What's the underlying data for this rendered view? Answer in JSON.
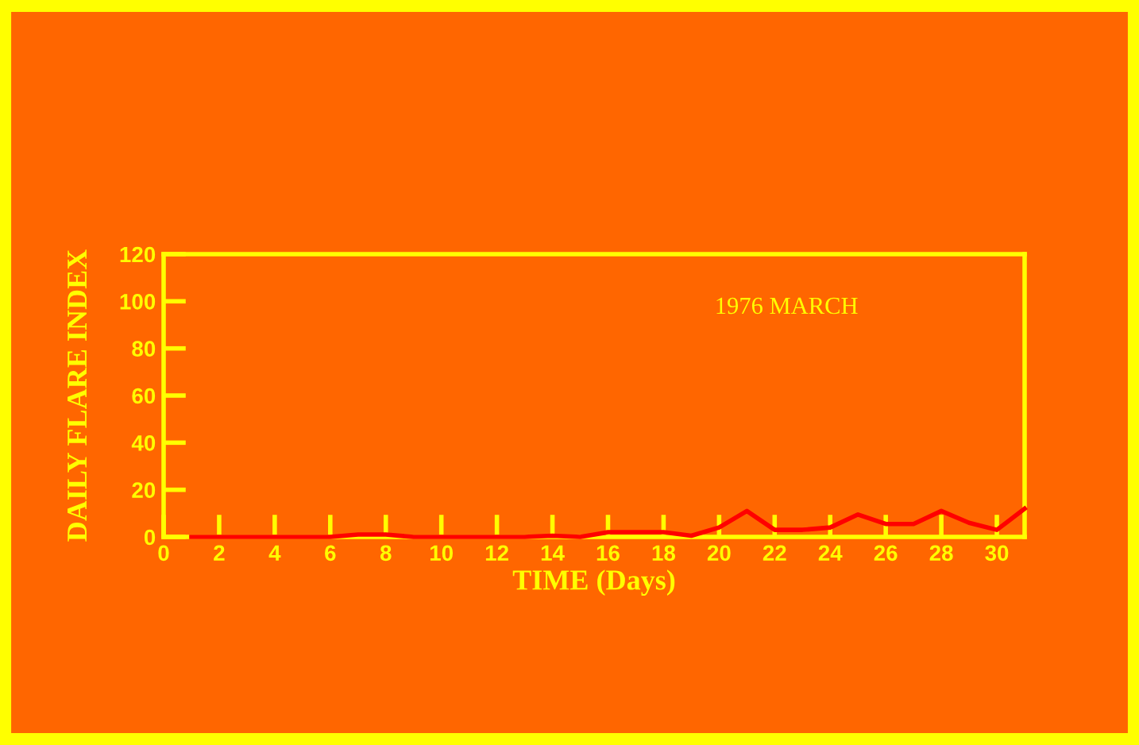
{
  "chart_data": {
    "type": "line",
    "xlabel": "TIME (Days)",
    "ylabel": "DAILY FLARE INDEX",
    "annotations": [
      "1976 MARCH"
    ],
    "x": [
      1,
      2,
      3,
      4,
      5,
      6,
      7,
      8,
      9,
      10,
      11,
      12,
      13,
      14,
      15,
      16,
      17,
      18,
      19,
      20,
      21,
      22,
      23,
      24,
      25,
      26,
      27,
      28,
      29,
      30,
      31
    ],
    "series": [
      {
        "color": "#ff0000",
        "values": [
          0,
          0,
          0,
          0,
          0,
          0,
          1,
          1,
          0,
          0,
          0,
          0,
          0,
          0.5,
          0,
          2,
          2,
          2,
          0.5,
          4,
          11,
          3,
          3,
          4,
          9.5,
          5.5,
          5.5,
          11,
          6,
          3,
          12
        ]
      }
    ],
    "xlim": [
      0,
      31
    ],
    "ylim": [
      0,
      120
    ],
    "xticks": [
      0,
      2,
      4,
      6,
      8,
      10,
      12,
      14,
      16,
      18,
      20,
      22,
      24,
      26,
      28,
      30
    ],
    "yticks": [
      0,
      20,
      40,
      60,
      80,
      100,
      120
    ],
    "grid": false,
    "marker": "none",
    "line_style": "solid"
  }
}
